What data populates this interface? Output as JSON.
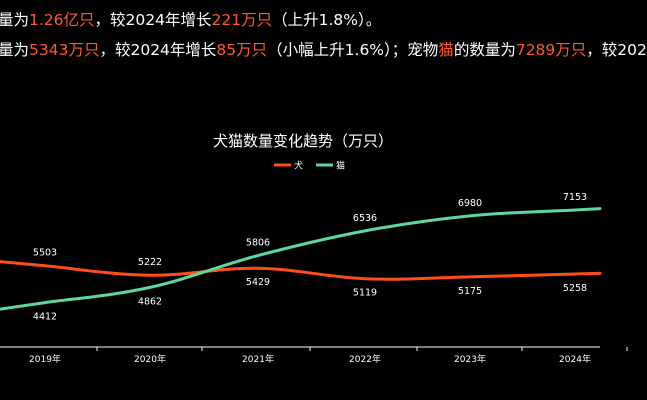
{
  "caption": {
    "line1": [
      {
        "text": "量为",
        "hl": false
      },
      {
        "text": "1.26亿只",
        "hl": true
      },
      {
        "text": "，较2024年增长",
        "hl": false
      },
      {
        "text": "221万只",
        "hl": true
      },
      {
        "text": "（上升1.8%）。",
        "hl": false
      }
    ],
    "line2": [
      {
        "text": "量为",
        "hl": false
      },
      {
        "text": "5343万只",
        "hl": true
      },
      {
        "text": "，较2024年增长",
        "hl": false
      },
      {
        "text": "85万只",
        "hl": true
      },
      {
        "text": "（小幅上升1.6%）；宠物",
        "hl": false
      },
      {
        "text": "猫",
        "hl": true
      },
      {
        "text": "的数量为",
        "hl": false
      },
      {
        "text": "7289万只",
        "hl": true
      },
      {
        "text": "，较202",
        "hl": false
      }
    ]
  },
  "colors": {
    "highlight": "#ff5a2e",
    "dog": "#ff4d1a",
    "cat": "#5ed6a0",
    "background": "#000000",
    "axis": "#ffffff"
  },
  "chart_data": {
    "type": "line",
    "title": "犬猫数量变化趋势（万只）",
    "categories": [
      "2019年",
      "2020年",
      "2021年",
      "2022年",
      "2023年",
      "2024年"
    ],
    "series": [
      {
        "name": "犬",
        "values": [
          5503,
          5222,
          5429,
          5119,
          5175,
          5258
        ],
        "color": "#ff4d1a"
      },
      {
        "name": "猫",
        "values": [
          4412,
          4862,
          5806,
          6536,
          6980,
          7153
        ],
        "color": "#5ed6a0"
      }
    ],
    "legend_position": "top-center",
    "grid": false
  }
}
